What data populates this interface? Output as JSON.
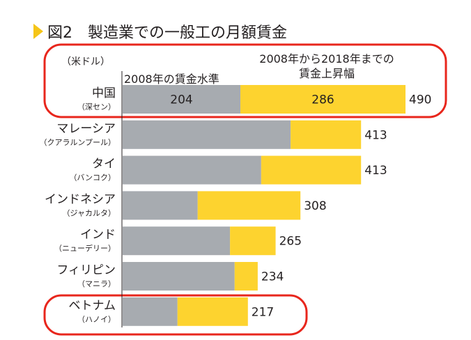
{
  "chart_data": {
    "type": "bar",
    "stacked": true,
    "orientation": "horizontal",
    "title": "図2　製造業での一般工の月額賃金",
    "unit_label": "（米ドル）",
    "legend": [
      "2008年の賃金水準",
      "2008年から2018年までの\n賃金上昇幅"
    ],
    "legend_line1": "2008年から2018年までの",
    "legend_line2": "賃金上昇幅",
    "categories": [
      {
        "name": "中国",
        "city": "（深セン）"
      },
      {
        "name": "マレーシア",
        "city": "（クアラルンプール）"
      },
      {
        "name": "タイ",
        "city": "（バンコク）"
      },
      {
        "name": "インドネシア",
        "city": "（ジャカルタ）"
      },
      {
        "name": "インド",
        "city": "（ニューデリー）"
      },
      {
        "name": "フィリピン",
        "city": "（マニラ）"
      },
      {
        "name": "ベトナム",
        "city": "（ハノイ）"
      }
    ],
    "series": [
      {
        "name": "2008年の賃金水準",
        "color": "#a7abb0",
        "values": [
          204,
          291,
          240,
          130,
          186,
          194,
          95
        ]
      },
      {
        "name": "2008年から2018年までの賃金上昇幅",
        "color": "#fdd32f",
        "values": [
          286,
          122,
          173,
          178,
          79,
          40,
          122
        ]
      }
    ],
    "totals": [
      "490",
      "413",
      "413",
      "308",
      "265",
      "234",
      "217"
    ],
    "inner_labels": {
      "0": [
        "204",
        "286"
      ]
    },
    "highlighted": [
      "中国",
      "ベトナム"
    ],
    "highlight_color": "#e8261c",
    "xlim": [
      0,
      490
    ]
  }
}
